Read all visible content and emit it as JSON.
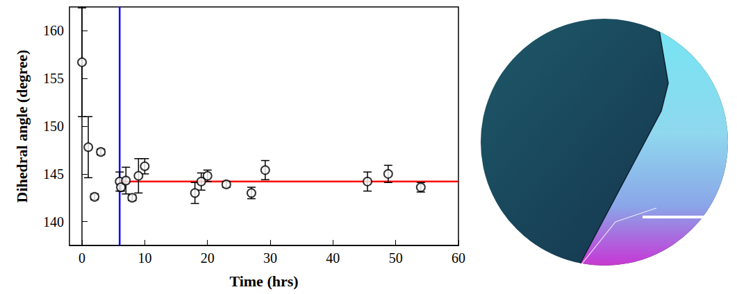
{
  "chart_data": {
    "type": "scatter",
    "x_label": "Time (hrs)",
    "y_label": "Dihedral angle (degree)",
    "x": [
      0,
      1,
      2,
      3,
      6,
      6.2,
      7,
      8,
      9,
      10,
      18,
      19,
      20,
      23,
      27,
      29.2,
      45.5,
      48.8,
      54
    ],
    "values": [
      156.7,
      147.8,
      142.6,
      147.3,
      144.2,
      143.6,
      144.3,
      142.5,
      144.8,
      145.8,
      143.0,
      144.2,
      144.8,
      143.9,
      143.0,
      145.4,
      144.2,
      145.0,
      143.6
    ],
    "errors": [
      5.7,
      3.2,
      0.3,
      0.3,
      1.0,
      0.4,
      1.4,
      0.3,
      1.8,
      0.8,
      1.1,
      0.9,
      0.6,
      0.3,
      0.6,
      1.0,
      1.0,
      0.9,
      0.5
    ],
    "color": "#000000",
    "marker": "open_circle",
    "xlim": [
      -2,
      60
    ],
    "xticks": [
      0,
      10,
      20,
      30,
      40,
      50,
      60
    ],
    "ylim": [
      137.5,
      162.5
    ],
    "yticks": [
      140,
      145,
      150,
      155,
      160
    ],
    "grid": false,
    "reference_lines": [
      {
        "orientation": "vertical",
        "x": 6,
        "color": "#0000ff"
      },
      {
        "orientation": "horizontal",
        "y": 144.2,
        "x_start": 6,
        "x_end": 60,
        "color": "#ff0000"
      }
    ]
  }
}
